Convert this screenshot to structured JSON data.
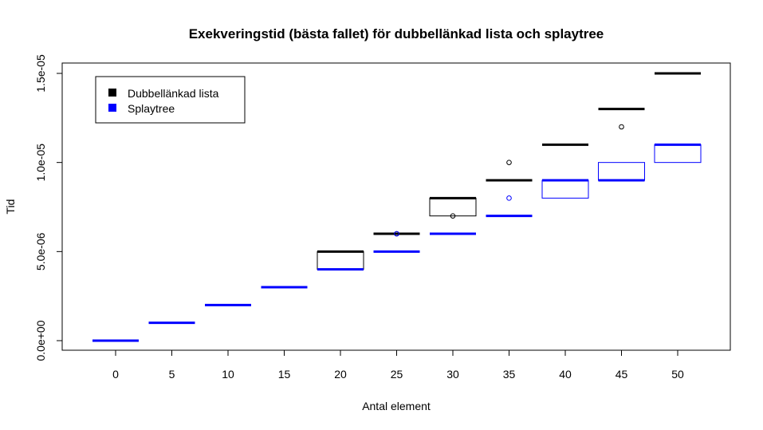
{
  "chart_data": {
    "type": "boxplot",
    "title": "Exekveringstid (bästa fallet) för dubbellänkad lista och splaytree",
    "xlabel": "Antal element",
    "ylabel": "Tid",
    "categories": [
      "0",
      "5",
      "10",
      "15",
      "20",
      "25",
      "30",
      "35",
      "40",
      "45",
      "50"
    ],
    "x_values": [
      0,
      5,
      10,
      15,
      20,
      25,
      30,
      35,
      40,
      45,
      50
    ],
    "y_ticks": [
      0,
      5e-06,
      1e-05,
      1.5e-05
    ],
    "y_tick_labels": [
      "0.0e+00",
      "5.0e-06",
      "1.0e-05",
      "1.5e-05"
    ],
    "ylim": [
      -3e-07,
      1.58e-05
    ],
    "grid": false,
    "legend_position": "top-left",
    "legend": [
      {
        "label": "Dubbellänkad lista",
        "color": "#000000"
      },
      {
        "label": "Splaytree",
        "color": "#0000ff"
      }
    ],
    "series": [
      {
        "name": "Dubbellänkad lista",
        "color": "#000000",
        "boxes": [
          {
            "x": 20,
            "q1": 4e-06,
            "median": 5e-06,
            "q3": 5e-06,
            "outliers": []
          },
          {
            "x": 25,
            "q1": 6e-06,
            "median": 6e-06,
            "q3": 6e-06,
            "outliers": [
              6e-06
            ]
          },
          {
            "x": 30,
            "q1": 7e-06,
            "median": 8e-06,
            "q3": 8e-06,
            "outliers": [
              7e-06
            ]
          },
          {
            "x": 35,
            "q1": 9e-06,
            "median": 9e-06,
            "q3": 9e-06,
            "outliers": [
              1e-05
            ]
          },
          {
            "x": 40,
            "q1": 1.1e-05,
            "median": 1.1e-05,
            "q3": 1.1e-05,
            "outliers": []
          },
          {
            "x": 45,
            "q1": 1.3e-05,
            "median": 1.3e-05,
            "q3": 1.3e-05,
            "outliers": [
              1.2e-05
            ]
          },
          {
            "x": 50,
            "q1": 1.5e-05,
            "median": 1.5e-05,
            "q3": 1.5e-05,
            "outliers": []
          }
        ]
      },
      {
        "name": "Splaytree",
        "color": "#0000ff",
        "boxes": [
          {
            "x": 0,
            "q1": 0,
            "median": 0,
            "q3": 0,
            "outliers": []
          },
          {
            "x": 5,
            "q1": 1e-06,
            "median": 1e-06,
            "q3": 1e-06,
            "outliers": []
          },
          {
            "x": 10,
            "q1": 2e-06,
            "median": 2e-06,
            "q3": 2e-06,
            "outliers": []
          },
          {
            "x": 15,
            "q1": 3e-06,
            "median": 3e-06,
            "q3": 3e-06,
            "outliers": []
          },
          {
            "x": 20,
            "q1": 4e-06,
            "median": 4e-06,
            "q3": 4e-06,
            "outliers": []
          },
          {
            "x": 25,
            "q1": 5e-06,
            "median": 5e-06,
            "q3": 5e-06,
            "outliers": [
              6e-06
            ]
          },
          {
            "x": 30,
            "q1": 6e-06,
            "median": 6e-06,
            "q3": 6e-06,
            "outliers": []
          },
          {
            "x": 35,
            "q1": 7e-06,
            "median": 7e-06,
            "q3": 7e-06,
            "outliers": [
              8e-06
            ]
          },
          {
            "x": 40,
            "q1": 8e-06,
            "median": 9e-06,
            "q3": 9e-06,
            "outliers": []
          },
          {
            "x": 45,
            "q1": 9e-06,
            "median": 9e-06,
            "q3": 1e-05,
            "outliers": []
          },
          {
            "x": 50,
            "q1": 1e-05,
            "median": 1.1e-05,
            "q3": 1.1e-05,
            "outliers": []
          }
        ]
      }
    ]
  }
}
